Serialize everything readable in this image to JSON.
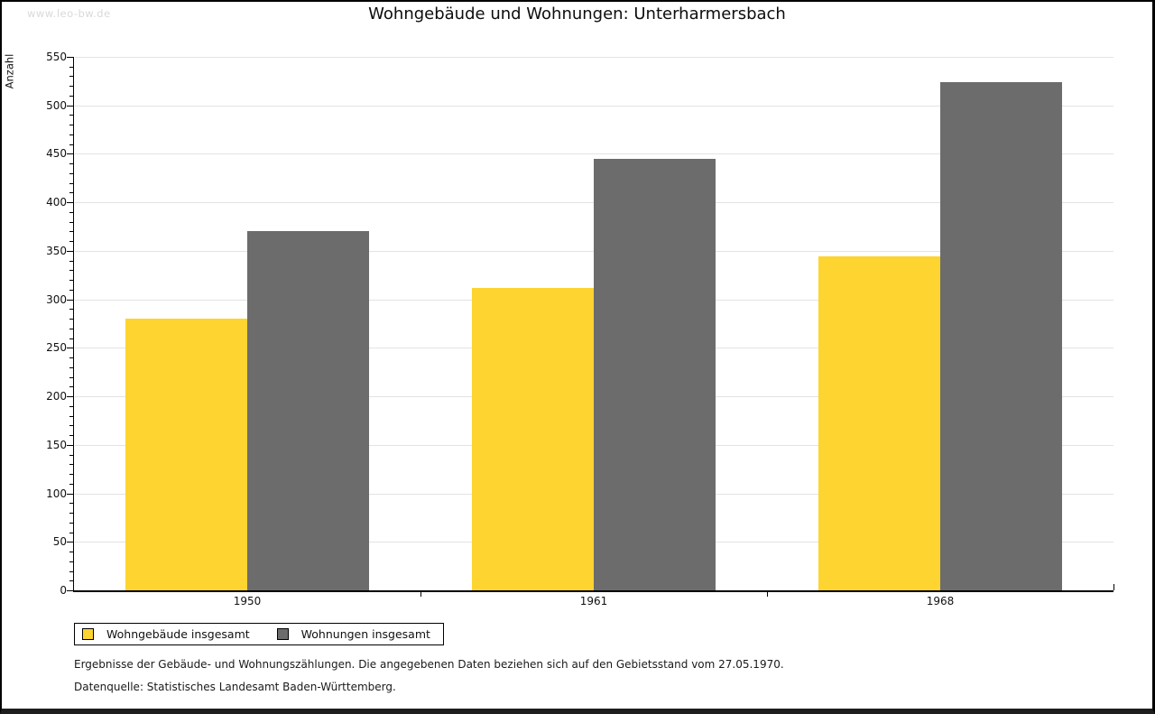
{
  "watermark": "www.leo-bw.de",
  "title": "Wohngebäude und Wohnungen: Unterharmersbach",
  "colors": {
    "bar_yellow": "#fdd430",
    "bar_gray": "#6c6c6c",
    "gridline": "#e3e3e3",
    "axis": "#000000",
    "watermark": "#d9d9d9"
  },
  "chart_data": {
    "type": "bar",
    "title": "Wohngebäude und Wohnungen: Unterharmersbach",
    "categories": [
      "1950",
      "1961",
      "1968"
    ],
    "series": [
      {
        "name": "Wohngebäude insgesamt",
        "color": "#fdd430",
        "values": [
          280,
          312,
          344
        ]
      },
      {
        "name": "Wohnungen insgesamt",
        "color": "#6c6c6c",
        "values": [
          370,
          445,
          524
        ]
      }
    ],
    "xlabel": "",
    "ylabel": "Anzahl",
    "ylim": [
      0,
      550
    ],
    "yticks": [
      0,
      50,
      100,
      150,
      200,
      250,
      300,
      350,
      400,
      450,
      500,
      550
    ],
    "ytick_step": 50,
    "yminor_step": 10,
    "grid": true,
    "legend_position": "bottom-left"
  },
  "legend": {
    "items": [
      {
        "label": "Wohngebäude insgesamt",
        "color": "#fdd430"
      },
      {
        "label": "Wohnungen insgesamt",
        "color": "#6c6c6c"
      }
    ]
  },
  "footnotes": [
    "Ergebnisse der Gebäude- und Wohnungszählungen. Die angegebenen Daten beziehen sich auf den Gebietsstand vom 27.05.1970.",
    "Datenquelle: Statistisches Landesamt Baden-Württemberg."
  ]
}
